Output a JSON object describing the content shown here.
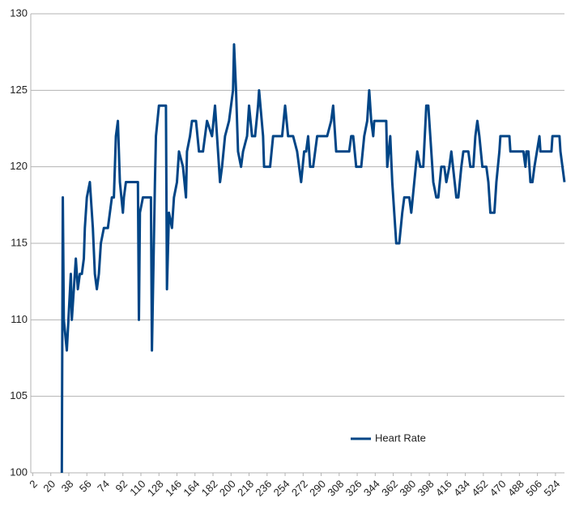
{
  "chart_data": {
    "type": "line",
    "x": [
      31,
      32,
      33,
      36,
      40,
      41,
      43,
      45,
      47,
      49,
      51,
      53,
      54,
      56,
      59,
      62,
      64,
      66,
      68,
      70,
      73,
      77,
      79,
      81,
      83,
      85,
      87,
      89,
      92,
      93,
      95,
      107,
      108,
      109,
      112,
      120,
      121,
      124,
      125,
      128,
      135,
      136,
      138,
      141,
      143,
      146,
      148,
      152,
      155,
      156,
      159,
      161,
      165,
      168,
      172,
      176,
      181,
      184,
      186,
      189,
      191,
      194,
      198,
      202,
      203,
      205,
      207,
      210,
      212,
      216,
      218,
      221,
      224,
      227,
      228,
      232,
      233,
      239,
      242,
      251,
      254,
      257,
      262,
      266,
      270,
      273,
      275,
      277,
      279,
      282,
      286,
      296,
      300,
      302,
      304,
      305,
      318,
      320,
      322,
      325,
      330,
      333,
      336,
      338,
      340,
      342,
      343,
      355,
      356,
      359,
      361,
      363,
      364,
      365,
      368,
      371,
      373,
      378,
      380,
      383,
      386,
      389,
      392,
      395,
      397,
      400,
      402,
      405,
      407,
      410,
      413,
      415,
      418,
      420,
      425,
      427,
      430,
      432,
      437,
      439,
      442,
      444,
      446,
      448,
      451,
      455,
      457,
      459,
      463,
      465,
      468,
      469,
      478,
      479,
      492,
      494,
      495,
      497,
      499,
      501,
      503,
      508,
      509,
      520,
      521,
      528,
      529,
      533
    ],
    "series": [
      {
        "name": "Heart Rate",
        "color": "#004586",
        "values": [
          100,
          118,
          110,
          108,
          113,
          110,
          112,
          114,
          112,
          113,
          113,
          114,
          116,
          118,
          119,
          116,
          113,
          112,
          113,
          115,
          116,
          116,
          117,
          118,
          118,
          122,
          123,
          119,
          117,
          118,
          119,
          119,
          110,
          117,
          118,
          118,
          108,
          119,
          122,
          124,
          124,
          112,
          117,
          116,
          118,
          119,
          121,
          120,
          118,
          121,
          122,
          123,
          123,
          121,
          121,
          123,
          122,
          124,
          122,
          119,
          120,
          122,
          123,
          125,
          128,
          125,
          121,
          120,
          121,
          122,
          124,
          122,
          122,
          124,
          125,
          122,
          120,
          120,
          122,
          122,
          124,
          122,
          122,
          121,
          119,
          121,
          121,
          122,
          120,
          120,
          122,
          122,
          123,
          124,
          122,
          121,
          121,
          122,
          122,
          120,
          120,
          122,
          123,
          125,
          123,
          122,
          123,
          123,
          120,
          122,
          119,
          117,
          116,
          115,
          115,
          117,
          118,
          118,
          117,
          119,
          121,
          120,
          120,
          124,
          124,
          121,
          119,
          118,
          118,
          120,
          120,
          119,
          120,
          121,
          118,
          118,
          120,
          121,
          121,
          120,
          120,
          122,
          123,
          122,
          120,
          120,
          119,
          117,
          117,
          119,
          121,
          122,
          122,
          121,
          121,
          120,
          121,
          121,
          119,
          119,
          120,
          122,
          121,
          121,
          122,
          122,
          121,
          119
        ]
      }
    ],
    "xlim": [
      0,
      533
    ],
    "xticks": [
      2,
      20,
      38,
      56,
      74,
      92,
      110,
      128,
      146,
      164,
      182,
      200,
      218,
      236,
      254,
      272,
      290,
      308,
      326,
      344,
      362,
      380,
      398,
      416,
      434,
      452,
      470,
      488,
      506,
      524
    ],
    "ylim": [
      100,
      130
    ],
    "yticks": [
      100,
      105,
      110,
      115,
      120,
      125,
      130
    ],
    "grid": true,
    "legend": "bottom"
  }
}
